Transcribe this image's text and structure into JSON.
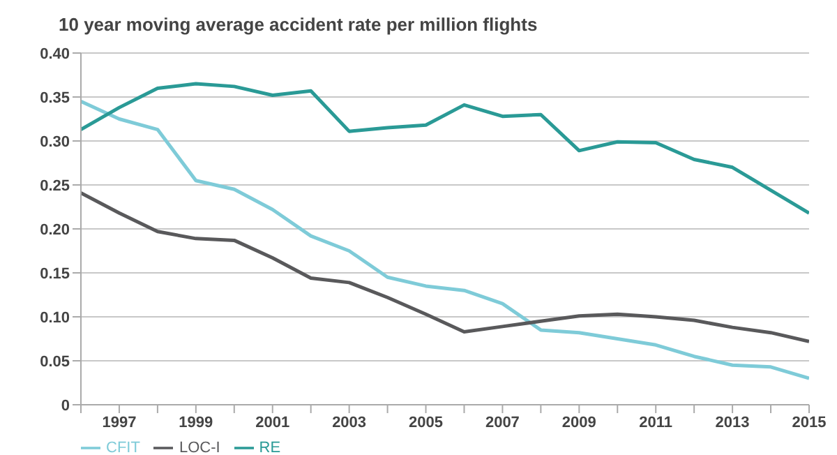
{
  "chart_data": {
    "type": "line",
    "title": "10 year moving average accident rate per million flights",
    "x": [
      1996,
      1997,
      1998,
      1999,
      2000,
      2001,
      2002,
      2003,
      2004,
      2005,
      2006,
      2007,
      2008,
      2009,
      2010,
      2011,
      2012,
      2013,
      2014,
      2015
    ],
    "series": [
      {
        "name": "CFIT",
        "color": "#7ecbd8",
        "values": [
          0.345,
          0.325,
          0.313,
          0.255,
          0.245,
          0.222,
          0.192,
          0.175,
          0.145,
          0.135,
          0.13,
          0.115,
          0.085,
          0.082,
          0.075,
          0.068,
          0.055,
          0.045,
          0.043,
          0.03
        ]
      },
      {
        "name": "LOC-I",
        "color": "#59595b",
        "values": [
          0.241,
          0.218,
          0.197,
          0.189,
          0.187,
          0.167,
          0.144,
          0.139,
          0.122,
          0.103,
          0.083,
          0.089,
          0.095,
          0.101,
          0.103,
          0.1,
          0.096,
          0.088,
          0.082,
          0.072
        ]
      },
      {
        "name": "RE",
        "color": "#2a9a96",
        "values": [
          0.313,
          0.338,
          0.36,
          0.365,
          0.362,
          0.352,
          0.357,
          0.311,
          0.315,
          0.318,
          0.341,
          0.328,
          0.33,
          0.289,
          0.299,
          0.298,
          0.279,
          0.27,
          0.244,
          0.218
        ]
      }
    ],
    "xlim": [
      1996,
      2015
    ],
    "xticks": [
      {
        "value": 1996,
        "label": null
      },
      1997,
      {
        "value": 1998,
        "label": null
      },
      1999,
      {
        "value": 2000,
        "label": null
      },
      2001,
      {
        "value": 2002,
        "label": null
      },
      2003,
      {
        "value": 2004,
        "label": null
      },
      2005,
      {
        "value": 2006,
        "label": null
      },
      2007,
      {
        "value": 2008,
        "label": null
      },
      2009,
      {
        "value": 2010,
        "label": null
      },
      2011,
      {
        "value": 2012,
        "label": null
      },
      2013,
      {
        "value": 2014,
        "label": null
      },
      2015
    ],
    "ylim": [
      0,
      0.4
    ],
    "yticks": [
      0,
      {
        "value": 0.05,
        "label": "0.05"
      },
      {
        "value": 0.1,
        "label": "0.10"
      },
      {
        "value": 0.15,
        "label": "0.15"
      },
      {
        "value": 0.2,
        "label": "0.20"
      },
      {
        "value": 0.25,
        "label": "0.25"
      },
      {
        "value": 0.3,
        "label": "0.30"
      },
      {
        "value": 0.35,
        "label": "0.35"
      },
      {
        "value": 0.4,
        "label": "0.40"
      }
    ],
    "grid": "y",
    "legend": "bottom left",
    "marker": "none",
    "line_style": "solid"
  }
}
